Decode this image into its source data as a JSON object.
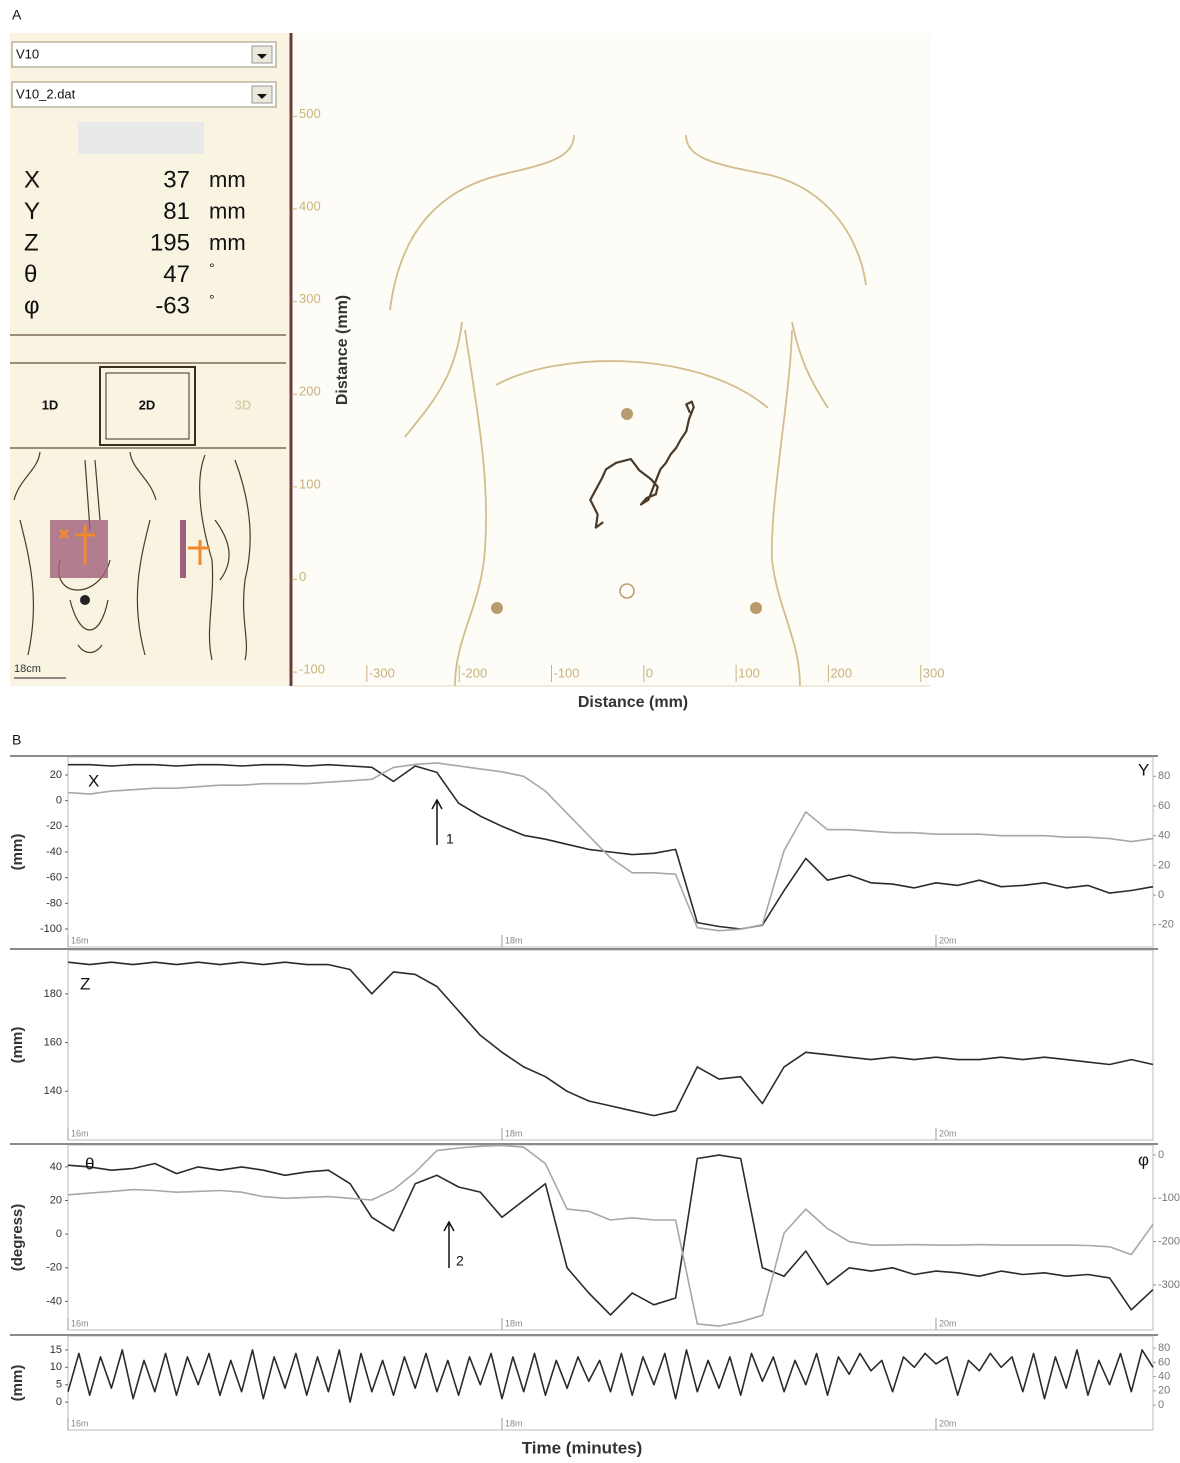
{
  "panel_a": {
    "label": "A",
    "subject": "V10",
    "file": "V10_2.dat",
    "readouts": [
      {
        "label": "X",
        "value": 37,
        "unit": "mm"
      },
      {
        "label": "Y",
        "value": 81,
        "unit": "mm"
      },
      {
        "label": "Z",
        "value": 195,
        "unit": "mm"
      },
      {
        "label": "θ",
        "value": 47,
        "unit": "°"
      },
      {
        "label": "φ",
        "value": -63,
        "unit": "°"
      }
    ],
    "view_buttons": [
      "1D",
      "2D",
      "3D"
    ],
    "scale_label": "18cm",
    "plot": {
      "x_label": "Distance (mm)",
      "y_label": "Distance (mm)",
      "xlim": [
        -380,
        310
      ],
      "ylim": [
        -115,
        590
      ],
      "xticks": [
        -300,
        -200,
        -100,
        0,
        100,
        200,
        300
      ],
      "yticks": [
        500,
        400,
        300,
        200,
        100,
        0,
        -100
      ],
      "trajectory": {
        "color": "#4a3b2a",
        "x": [
          -44,
          -52,
          -50,
          -58,
          -45,
          -41,
          -30,
          -14,
          -5,
          8,
          15,
          13,
          3,
          -3,
          5,
          12,
          18,
          24,
          29,
          35,
          40,
          46,
          49,
          54,
          52,
          46,
          50
        ],
        "y": [
          62,
          56,
          70,
          86,
          110,
          119,
          126,
          130,
          118,
          108,
          100,
          92,
          88,
          81,
          86,
          104,
          119,
          126,
          135,
          142,
          151,
          160,
          173,
          186,
          192,
          189,
          180
        ]
      }
    }
  },
  "panel_b": {
    "label": "B",
    "x_label": "Time (minutes)",
    "xlim": [
      16,
      21
    ],
    "xticks": [
      {
        "value": 16,
        "label": "16m"
      },
      {
        "value": 18,
        "label": "18m"
      },
      {
        "value": 20,
        "label": "20m"
      }
    ],
    "x": [
      16.0,
      16.1,
      16.2,
      16.3,
      16.4,
      16.5,
      16.6,
      16.7,
      16.8,
      16.9,
      17.0,
      17.1,
      17.2,
      17.3,
      17.4,
      17.5,
      17.6,
      17.7,
      17.8,
      17.9,
      18.0,
      18.1,
      18.2,
      18.3,
      18.4,
      18.5,
      18.6,
      18.7,
      18.8,
      18.9,
      19.0,
      19.1,
      19.2,
      19.3,
      19.4,
      19.5,
      19.6,
      19.7,
      19.8,
      19.9,
      20.0,
      20.1,
      20.2,
      20.3,
      20.4,
      20.5,
      20.6,
      20.7,
      20.8,
      20.9,
      21.0
    ],
    "strips": [
      {
        "y_label": "(mm)",
        "ylim": [
          -114,
          34
        ],
        "yticks": [
          20,
          0,
          -20,
          -40,
          -60,
          -80,
          -100
        ],
        "y2lim": [
          -35,
          93
        ],
        "y2ticks": [
          80,
          60,
          40,
          20,
          0,
          -20
        ],
        "annotation": "1",
        "series": [
          {
            "name": "X",
            "color": "#2b2b2b",
            "values": [
              28,
              28,
              27,
              28,
              28,
              27,
              28,
              28,
              27,
              28,
              28,
              27,
              28,
              27,
              26,
              15,
              27,
              22,
              -2,
              -12,
              -20,
              -27,
              -30,
              -34,
              -38,
              -40,
              -42,
              -41,
              -38,
              -95,
              -98,
              -100,
              -97,
              -70,
              -45,
              -62,
              -58,
              -64,
              -65,
              -68,
              -64,
              -66,
              -62,
              -67,
              -66,
              -64,
              -68,
              -66,
              -72,
              -70,
              -67
            ]
          },
          {
            "name": "Y",
            "color": "#a8a8a8",
            "axis": "y2",
            "values": [
              69,
              68,
              70,
              71,
              72,
              72,
              73,
              74,
              74,
              75,
              75,
              75,
              76,
              77,
              78,
              86,
              88,
              89,
              87,
              85,
              83,
              80,
              70,
              55,
              40,
              25,
              15,
              15,
              14,
              -22,
              -24,
              -23,
              -20,
              30,
              56,
              44,
              44,
              43,
              42,
              42,
              41,
              41,
              41,
              40,
              40,
              40,
              39,
              39,
              38,
              36,
              38
            ]
          }
        ]
      },
      {
        "y_label": "(mm)",
        "ylim": [
          120,
          198
        ],
        "yticks": [
          180,
          160,
          140
        ],
        "series": [
          {
            "name": "Z",
            "color": "#2b2b2b",
            "values": [
              193,
              192,
              193,
              192,
              193,
              192,
              193,
              192,
              193,
              192,
              193,
              192,
              192,
              190,
              180,
              189,
              188,
              183,
              173,
              163,
              156,
              150,
              146,
              140,
              136,
              134,
              132,
              130,
              132,
              150,
              145,
              146,
              135,
              150,
              156,
              155,
              154,
              153,
              154,
              153,
              154,
              153,
              153,
              154,
              153,
              154,
              153,
              152,
              151,
              153,
              151
            ]
          }
        ]
      },
      {
        "y_label": "(degress)",
        "ylim": [
          -57,
          53
        ],
        "yticks": [
          40,
          20,
          0,
          -20,
          -40
        ],
        "y2lim": [
          -404,
          23
        ],
        "y2ticks": [
          0,
          -100,
          -200,
          -300
        ],
        "annotation": "2",
        "series": [
          {
            "name": "θ",
            "color": "#2b2b2b",
            "values": [
              41,
              40,
              38,
              39,
              42,
              36,
              40,
              38,
              40,
              38,
              35,
              37,
              38,
              30,
              10,
              2,
              30,
              35,
              28,
              25,
              10,
              20,
              30,
              -20,
              -35,
              -48,
              -35,
              -42,
              -38,
              45,
              47,
              45,
              -20,
              -25,
              -10,
              -30,
              -20,
              -22,
              -20,
              -24,
              -22,
              -23,
              -25,
              -22,
              -24,
              -23,
              -25,
              -24,
              -26,
              -45,
              -33
            ]
          },
          {
            "name": "φ",
            "color": "#a8a8a8",
            "axis": "y2",
            "values": [
              -92,
              -88,
              -84,
              -80,
              -82,
              -86,
              -84,
              -82,
              -86,
              -96,
              -100,
              -98,
              -96,
              -100,
              -104,
              -80,
              -40,
              10,
              16,
              20,
              22,
              18,
              -20,
              -125,
              -130,
              -150,
              -145,
              -150,
              -150,
              -390,
              -395,
              -385,
              -370,
              -180,
              -125,
              -170,
              -200,
              -208,
              -208,
              -207,
              -208,
              -208,
              -207,
              -208,
              -208,
              -208,
              -208,
              -209,
              -212,
              -230,
              -160
            ]
          }
        ]
      },
      {
        "y_label": "(mm)",
        "ylim": [
          -8,
          19
        ],
        "yticks": [
          15,
          10,
          5,
          0
        ],
        "y2lim": [
          -35,
          97
        ],
        "y2ticks": [
          80,
          60,
          40,
          20,
          0
        ],
        "x": [
          16.0,
          16.05,
          16.1,
          16.15,
          16.2,
          16.25,
          16.3,
          16.35,
          16.4,
          16.45,
          16.5,
          16.55,
          16.6,
          16.65,
          16.7,
          16.75,
          16.8,
          16.85,
          16.9,
          16.95,
          17.0,
          17.05,
          17.1,
          17.15,
          17.2,
          17.25,
          17.3,
          17.35,
          17.4,
          17.45,
          17.5,
          17.55,
          17.6,
          17.65,
          17.7,
          17.75,
          17.8,
          17.85,
          17.9,
          17.95,
          18.0,
          18.05,
          18.1,
          18.15,
          18.2,
          18.25,
          18.3,
          18.35,
          18.4,
          18.45,
          18.5,
          18.55,
          18.6,
          18.65,
          18.7,
          18.75,
          18.8,
          18.85,
          18.9,
          18.95,
          19.0,
          19.05,
          19.1,
          19.15,
          19.2,
          19.25,
          19.3,
          19.35,
          19.4,
          19.45,
          19.5,
          19.55,
          19.6,
          19.65,
          19.7,
          19.75,
          19.8,
          19.85,
          19.9,
          19.95,
          20.0,
          20.05,
          20.1,
          20.15,
          20.2,
          20.25,
          20.3,
          20.35,
          20.4,
          20.45,
          20.5,
          20.55,
          20.6,
          20.65,
          20.7,
          20.75,
          20.8,
          20.85,
          20.9,
          20.95,
          21.0
        ],
        "series": [
          {
            "color": "#2b2b2b",
            "values": [
              3,
              14,
              2,
              13,
              4,
              15,
              1,
              12,
              3,
              14,
              2,
              13,
              5,
              14,
              2,
              12,
              3,
              15,
              1,
              13,
              4,
              14,
              2,
              13,
              3,
              15,
              0,
              14,
              3,
              12,
              2,
              13,
              4,
              14,
              3,
              12,
              2,
              13,
              5,
              14,
              1,
              13,
              3,
              14,
              2,
              12,
              4,
              13,
              6,
              12,
              3,
              14,
              2,
              13,
              5,
              14,
              1,
              15,
              3,
              12,
              4,
              13,
              2,
              14,
              6,
              13,
              3,
              12,
              5,
              14,
              2,
              13,
              8,
              14,
              9,
              12,
              3,
              13,
              10,
              14,
              11,
              13,
              2,
              12,
              9,
              14,
              10,
              13,
              3,
              14,
              1,
              13,
              4,
              15,
              2,
              12,
              5,
              14,
              3,
              15,
              10
            ]
          }
        ]
      }
    ]
  }
}
